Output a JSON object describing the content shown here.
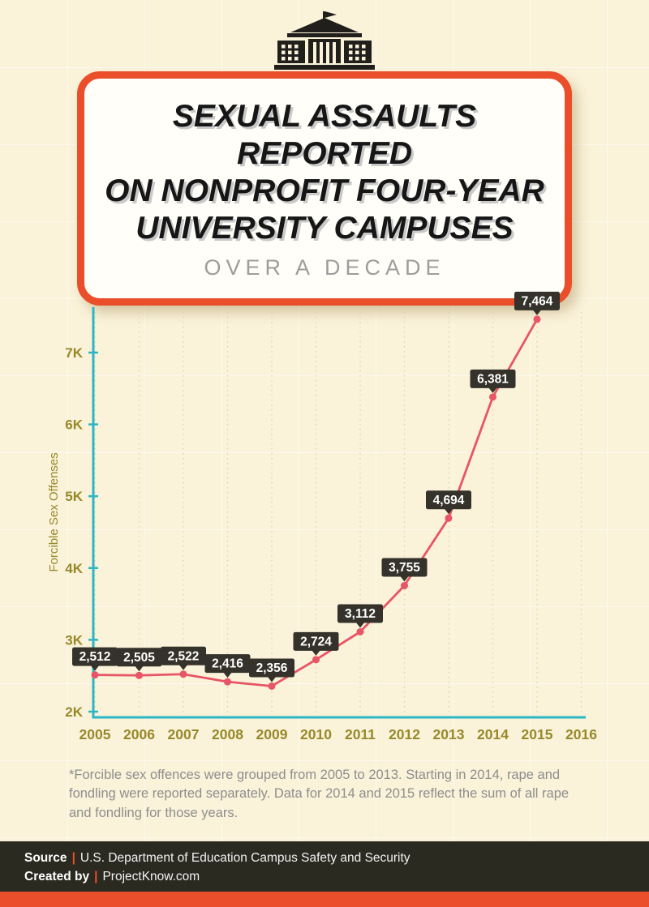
{
  "page": {
    "background": "#faf2d9",
    "accent": "#ea4e2a",
    "footer_bg": "#2b2a20"
  },
  "header": {
    "icon": "university-building-icon",
    "title_lines": [
      "SEXUAL ASSAULTS REPORTED",
      "ON NONPROFIT FOUR-YEAR",
      "UNIVERSITY CAMPUSES"
    ],
    "subtitle": "OVER A DECADE"
  },
  "chart_data": {
    "type": "line",
    "x": [
      2005,
      2006,
      2007,
      2008,
      2009,
      2010,
      2011,
      2012,
      2013,
      2014,
      2015
    ],
    "values": [
      2512,
      2505,
      2522,
      2416,
      2356,
      2724,
      3112,
      3755,
      4694,
      6381,
      7464
    ],
    "labels": [
      "2,512",
      "2,505",
      "2,522",
      "2,416",
      "2,356",
      "2,724",
      "3,112",
      "3,755",
      "4,694",
      "6,381",
      "7,464"
    ],
    "ylabel": "Forcible Sex Offenses",
    "xlabel": "",
    "yticks": [
      "2K",
      "3K",
      "4K",
      "5K",
      "6K",
      "7K"
    ],
    "ytick_values": [
      2000,
      3000,
      4000,
      5000,
      6000,
      7000
    ],
    "xticks": [
      "2005",
      "2006",
      "2007",
      "2008",
      "2009",
      "2010",
      "2011",
      "2012",
      "2013",
      "2014",
      "2015",
      "2016"
    ],
    "ylim": [
      2000,
      7600
    ],
    "grid": "vertical-dotted",
    "legend": "none",
    "line_color": "#e75566",
    "axis_color": "#2cb6c6",
    "label_box_color": "#34322a",
    "tick_text_color": "#97892a"
  },
  "footnote": "*Forcible sex offences were grouped from 2005 to 2013. Starting in 2014, rape and fondling were reported separately. Data for 2014 and 2015 reflect the sum of all rape and fondling for those years.",
  "footer": {
    "source_label": "Source",
    "separator": "|",
    "source_text": "U.S. Department of Education Campus Safety and Security",
    "created_label": "Created by",
    "created_text": "ProjectKnow.com"
  }
}
